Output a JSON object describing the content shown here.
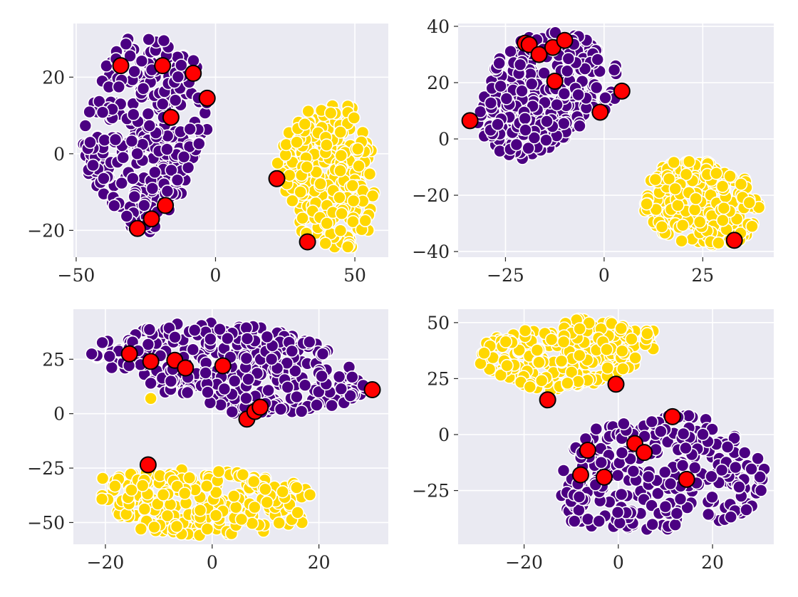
{
  "colors": {
    "cluster_purple": "#4b0082",
    "cluster_yellow": "#ffd700",
    "highlight": "#ff0000",
    "highlight_edge": "#000000",
    "point_edge": "#ffffff",
    "panel_background": "#eaeaf2",
    "grid": "#ffffff"
  },
  "chart_data": [
    {
      "type": "scatter",
      "title": "",
      "xlabel": "",
      "ylabel": "",
      "xlim": [
        -51,
        62
      ],
      "ylim": [
        -27,
        34
      ],
      "grid": true,
      "xticks": [
        {
          "v": -50,
          "label": "−50"
        },
        {
          "v": 0,
          "label": "0"
        },
        {
          "v": 50,
          "label": "50"
        }
      ],
      "yticks": [
        {
          "v": -20,
          "label": "−20"
        },
        {
          "v": 0,
          "label": "0"
        },
        {
          "v": 20,
          "label": "20"
        }
      ],
      "clusters": [
        {
          "name": "purple",
          "color": "#4b0082",
          "count": 320,
          "polygon": [
            [
              -33,
              30
            ],
            [
              -18,
              31
            ],
            [
              -8,
              25
            ],
            [
              -3,
              16
            ],
            [
              -3,
              4
            ],
            [
              -10,
              -6
            ],
            [
              -13,
              -14
            ],
            [
              -22,
              -20
            ],
            [
              -30,
              -22
            ],
            [
              -36,
              -15
            ],
            [
              -42,
              -10
            ],
            [
              -46,
              -6
            ],
            [
              -48,
              4
            ],
            [
              -45,
              12
            ],
            [
              -40,
              22
            ]
          ]
        },
        {
          "name": "yellow",
          "color": "#ffd700",
          "count": 260,
          "polygon": [
            [
              34,
              12
            ],
            [
              42,
              15
            ],
            [
              50,
              12
            ],
            [
              56,
              2
            ],
            [
              57,
              -10
            ],
            [
              55,
              -20
            ],
            [
              48,
              -25
            ],
            [
              38,
              -25
            ],
            [
              30,
              -20
            ],
            [
              24,
              -12
            ],
            [
              22,
              -2
            ],
            [
              25,
              6
            ]
          ]
        }
      ],
      "highlights": [
        [
          -34,
          23
        ],
        [
          -19,
          23
        ],
        [
          -8,
          21
        ],
        [
          -3,
          14.5
        ],
        [
          -16,
          9.5
        ],
        [
          22,
          -6.5
        ],
        [
          -18,
          -13.5
        ],
        [
          -23,
          -17
        ],
        [
          -28,
          -19.5
        ],
        [
          33,
          -23
        ]
      ]
    },
    {
      "type": "scatter",
      "title": "",
      "xlabel": "",
      "ylabel": "",
      "xlim": [
        -37,
        43
      ],
      "ylim": [
        -42,
        41
      ],
      "grid": true,
      "xticks": [
        {
          "v": -25,
          "label": "−25"
        },
        {
          "v": 0,
          "label": "0"
        },
        {
          "v": 25,
          "label": "25"
        }
      ],
      "yticks": [
        {
          "v": -40,
          "label": "−40"
        },
        {
          "v": -20,
          "label": "−20"
        },
        {
          "v": 0,
          "label": "0"
        },
        {
          "v": 20,
          "label": "20"
        },
        {
          "v": 40,
          "label": "40"
        }
      ],
      "clusters": [
        {
          "name": "purple",
          "color": "#4b0082",
          "count": 300,
          "polygon": [
            [
              -21,
              36
            ],
            [
              -12,
              38
            ],
            [
              -3,
              36
            ],
            [
              3,
              28
            ],
            [
              5,
              17
            ],
            [
              0,
              9
            ],
            [
              -8,
              2
            ],
            [
              -16,
              -5
            ],
            [
              -20,
              -8
            ],
            [
              -26,
              -5
            ],
            [
              -30,
              -2
            ],
            [
              -33,
              6
            ],
            [
              -30,
              18
            ],
            [
              -27,
              28
            ]
          ]
        },
        {
          "name": "yellow",
          "color": "#ffd700",
          "count": 250,
          "polygon": [
            [
              16,
              -8
            ],
            [
              26,
              -8
            ],
            [
              35,
              -13
            ],
            [
              40,
              -22
            ],
            [
              40,
              -30
            ],
            [
              35,
              -36
            ],
            [
              28,
              -38
            ],
            [
              20,
              -37
            ],
            [
              14,
              -33
            ],
            [
              10,
              -25
            ],
            [
              11,
              -16
            ]
          ]
        }
      ],
      "highlights": [
        [
          -20,
          34
        ],
        [
          -19,
          33.5
        ],
        [
          -16.5,
          30
        ],
        [
          -13,
          32.5
        ],
        [
          -10,
          35
        ],
        [
          -12.5,
          20.5
        ],
        [
          -34,
          6.5
        ],
        [
          -1,
          9.5
        ],
        [
          4.5,
          17
        ],
        [
          33,
          -36
        ]
      ]
    },
    {
      "type": "scatter",
      "title": "",
      "xlabel": "",
      "ylabel": "",
      "xlim": [
        -26,
        33
      ],
      "ylim": [
        -60,
        48
      ],
      "grid": true,
      "xticks": [
        {
          "v": -20,
          "label": "−20"
        },
        {
          "v": 0,
          "label": "0"
        },
        {
          "v": 20,
          "label": "20"
        }
      ],
      "yticks": [
        {
          "v": -50,
          "label": "−50"
        },
        {
          "v": -25,
          "label": "−25"
        },
        {
          "v": 0,
          "label": "0"
        },
        {
          "v": 25,
          "label": "25"
        }
      ],
      "clusters": [
        {
          "name": "purple",
          "color": "#4b0082",
          "count": 340,
          "polygon": [
            [
              -19,
              36
            ],
            [
              -10,
              41
            ],
            [
              2,
              43
            ],
            [
              12,
              38
            ],
            [
              20,
              32
            ],
            [
              25,
              25
            ],
            [
              30,
              11
            ],
            [
              25,
              4
            ],
            [
              18,
              1
            ],
            [
              10,
              -1
            ],
            [
              4,
              0
            ],
            [
              -2,
              5
            ],
            [
              -9,
              10
            ],
            [
              -15,
              18
            ],
            [
              -21,
              22
            ],
            [
              -24,
              29
            ]
          ]
        },
        {
          "name": "yellow",
          "color": "#ffd700",
          "count": 260,
          "polygon": [
            [
              -21,
              -29
            ],
            [
              -12,
              -27
            ],
            [
              -2,
              -25
            ],
            [
              8,
              -27
            ],
            [
              18,
              -33
            ],
            [
              20,
              -41
            ],
            [
              17,
              -50
            ],
            [
              8,
              -55
            ],
            [
              -3,
              -56
            ],
            [
              -14,
              -53
            ],
            [
              -19,
              -45
            ],
            [
              -22,
              -36
            ]
          ]
        }
      ],
      "extra_points": [
        {
          "x": -11.5,
          "y": 7,
          "color": "#ffd700"
        }
      ],
      "highlights": [
        [
          -15.5,
          27.5
        ],
        [
          -11.5,
          24
        ],
        [
          -7,
          24.5
        ],
        [
          -5,
          21
        ],
        [
          2,
          22
        ],
        [
          6.5,
          -2.5
        ],
        [
          8,
          1
        ],
        [
          9,
          3
        ],
        [
          30,
          11
        ],
        [
          -12,
          -23.5
        ]
      ]
    },
    {
      "type": "scatter",
      "title": "",
      "xlabel": "",
      "ylabel": "",
      "xlim": [
        -34,
        33
      ],
      "ylim": [
        -49,
        56
      ],
      "grid": true,
      "xticks": [
        {
          "v": -20,
          "label": "−20"
        },
        {
          "v": 0,
          "label": "0"
        },
        {
          "v": 20,
          "label": "20"
        }
      ],
      "yticks": [
        {
          "v": -25,
          "label": "−25"
        },
        {
          "v": 0,
          "label": "0"
        },
        {
          "v": 25,
          "label": "25"
        },
        {
          "v": 50,
          "label": "50"
        }
      ],
      "clusters": [
        {
          "name": "yellow",
          "color": "#ffd700",
          "count": 230,
          "polygon": [
            [
              -28,
              42
            ],
            [
              -18,
              48
            ],
            [
              -8,
              52
            ],
            [
              0,
              50
            ],
            [
              8,
              46
            ],
            [
              10,
              36
            ],
            [
              2,
              28
            ],
            [
              -6,
              22
            ],
            [
              -14,
              18
            ],
            [
              -20,
              21
            ],
            [
              -26,
              26
            ],
            [
              -31,
              34
            ]
          ]
        },
        {
          "name": "purple",
          "color": "#4b0082",
          "count": 300,
          "polygon": [
            [
              -6,
              2
            ],
            [
              2,
              6
            ],
            [
              10,
              10
            ],
            [
              20,
              7
            ],
            [
              28,
              -4
            ],
            [
              31,
              -15
            ],
            [
              30,
              -30
            ],
            [
              24,
              -38
            ],
            [
              12,
              -42
            ],
            [
              0,
              -44
            ],
            [
              -10,
              -40
            ],
            [
              -12,
              -28
            ],
            [
              -13,
              -18
            ],
            [
              -10,
              -8
            ]
          ]
        }
      ],
      "highlights": [
        [
          -15,
          15.5
        ],
        [
          -0.5,
          22.5
        ],
        [
          11.5,
          8
        ],
        [
          3.5,
          -4
        ],
        [
          5.5,
          -8
        ],
        [
          -6.5,
          -7
        ],
        [
          -8,
          -18
        ],
        [
          -3,
          -19
        ],
        [
          14.5,
          -20
        ]
      ]
    }
  ]
}
